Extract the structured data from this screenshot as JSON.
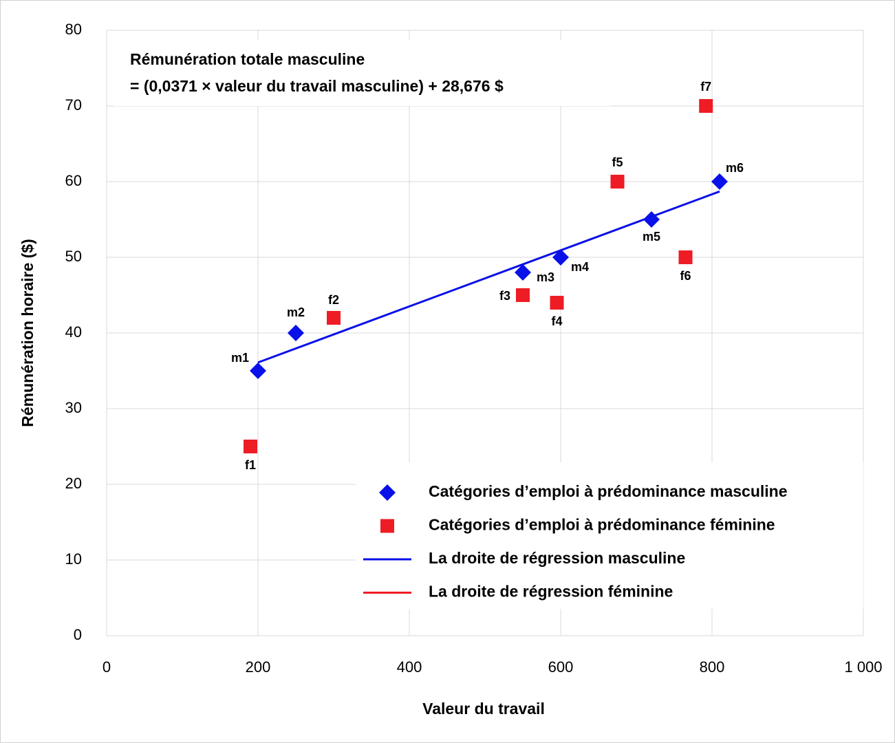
{
  "chart_data": {
    "type": "scatter",
    "x_label": "Valeur du travail",
    "y_label": "Rémunération horaire ($)",
    "annotation": [
      "Rémunération totale masculine",
      "= (0,0371 × valeur du travail masculine) + 28,676 $"
    ],
    "xlim": [
      0,
      1000
    ],
    "xticks": [
      0,
      200,
      400,
      600,
      800,
      {
        "value": 1000,
        "label": "1 000"
      }
    ],
    "ylim": [
      0,
      80
    ],
    "yticks": [
      0,
      10,
      20,
      30,
      40,
      50,
      60,
      70,
      80
    ],
    "grid": true,
    "series": [
      {
        "name": "Catégories d’emploi à prédominance masculine",
        "color": "#0a10e8",
        "marker": "diamond",
        "x": [
          200,
          250,
          550,
          600,
          720,
          810
        ],
        "values": [
          35,
          40,
          48,
          50,
          55,
          60
        ],
        "labels": [
          "m1",
          "m2",
          "m3",
          "m4",
          "m5",
          "m6"
        ]
      },
      {
        "name": "Catégories d’emploi à prédominance féminine",
        "color": "#ee1c25",
        "marker": "square",
        "x": [
          190,
          300,
          550,
          595,
          675,
          765,
          792
        ],
        "values": [
          25,
          42,
          45,
          44,
          60,
          50,
          70
        ],
        "labels": [
          "f1",
          "f2",
          "f3",
          "f4",
          "f5",
          "f6",
          "f7"
        ]
      },
      {
        "name": "La droite de régression masculine",
        "color": "#0a10e8",
        "marker": "line",
        "x": [
          200,
          810
        ],
        "values": [
          36.1,
          58.7
        ]
      },
      {
        "name": "La droite de régression féminine",
        "color": "#ee1c25",
        "marker": "line",
        "x": [],
        "values": []
      }
    ]
  }
}
